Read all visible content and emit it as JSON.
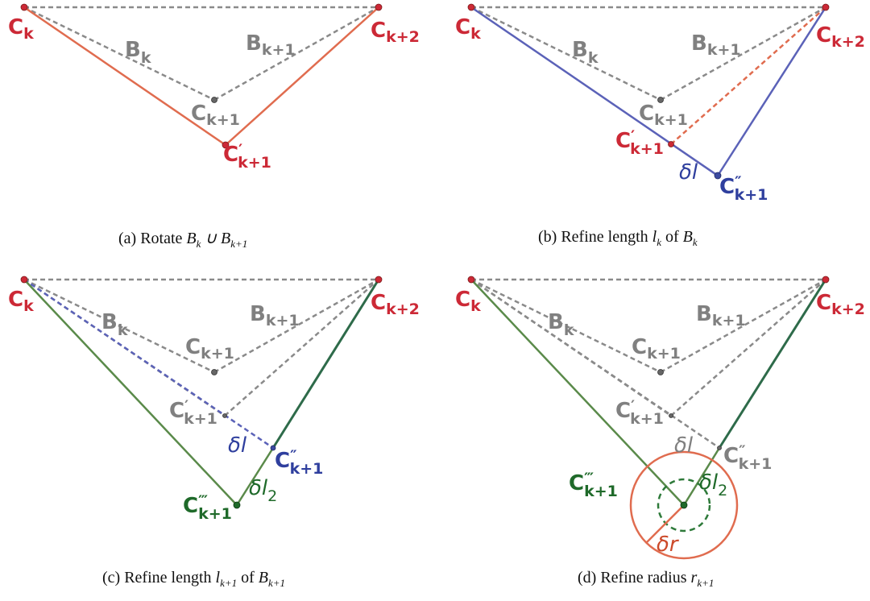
{
  "colors": {
    "red": "#cc2936",
    "orange": "#e06c4f",
    "grey": "#808080",
    "blue": "#5b62b8",
    "blue_text": "#2f3f9e",
    "green": "#5a8a4a",
    "dark_green": "#2e6b4a",
    "green_text": "#1f6a2a"
  },
  "captions": {
    "a": {
      "prefix": "(a) Rotate ",
      "math": "B_k ∪ B_{k+1}"
    },
    "b": {
      "prefix": "(b) Refine length ",
      "math": "l_k of B_k"
    },
    "c": {
      "prefix": "(c) Refine length ",
      "math": "l_{k+1} of B_{k+1}"
    },
    "d": {
      "prefix": "(d) Refine radius ",
      "math": "r_{k+1}"
    }
  },
  "labels": {
    "C": "C",
    "B": "B",
    "k": "k",
    "k1": "k+1",
    "k2": "k+2",
    "prime": "′",
    "dprime": "″",
    "tprime": "‴",
    "delta_l": "δl",
    "delta_l2_base": "δl",
    "delta_l2_sub": "2",
    "delta_r": "δr"
  }
}
